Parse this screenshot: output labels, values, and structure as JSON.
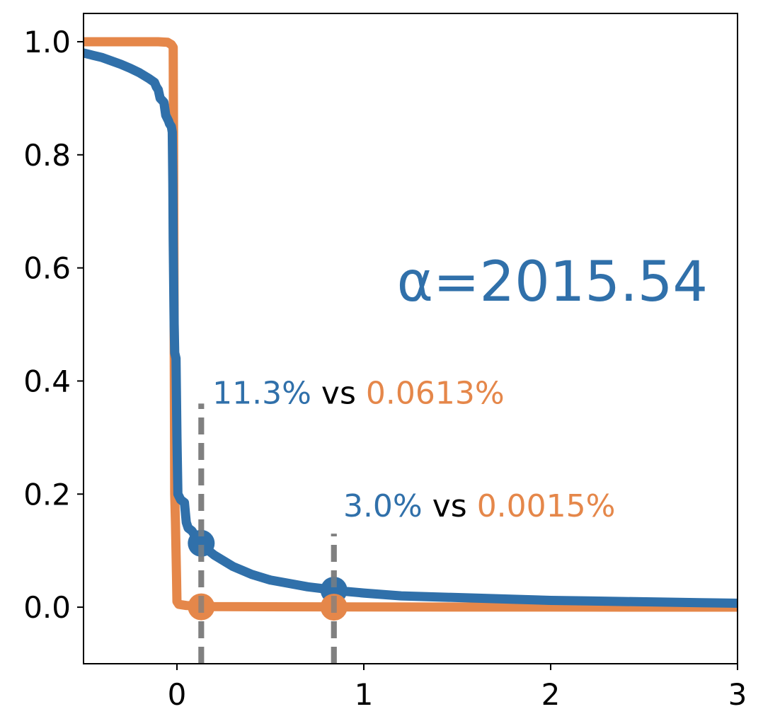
{
  "colors": {
    "blue": "#3070aa",
    "orange": "#e5874a",
    "vline": "#808080",
    "text": "#000000"
  },
  "chart_data": {
    "type": "line",
    "xlim": [
      -0.5,
      3.0
    ],
    "ylim": [
      -0.1,
      1.05
    ],
    "x_ticks": [
      0,
      1,
      2,
      3
    ],
    "x_tick_labels": [
      "0",
      "1",
      "2",
      "3"
    ],
    "y_ticks": [
      0.0,
      0.2,
      0.4,
      0.6,
      0.8,
      1.0
    ],
    "y_tick_labels": [
      "0.0",
      "0.2",
      "0.4",
      "0.6",
      "0.8",
      "1.0"
    ],
    "grid": false,
    "series": [
      {
        "color": "#3070aa",
        "points": [
          [
            -0.5,
            0.98
          ],
          [
            -0.45,
            0.976
          ],
          [
            -0.4,
            0.972
          ],
          [
            -0.35,
            0.966
          ],
          [
            -0.3,
            0.96
          ],
          [
            -0.25,
            0.953
          ],
          [
            -0.2,
            0.945
          ],
          [
            -0.15,
            0.935
          ],
          [
            -0.12,
            0.928
          ],
          [
            -0.11,
            0.92
          ],
          [
            -0.1,
            0.915
          ],
          [
            -0.09,
            0.9
          ],
          [
            -0.07,
            0.893
          ],
          [
            -0.06,
            0.87
          ],
          [
            -0.045,
            0.86
          ],
          [
            -0.04,
            0.855
          ],
          [
            -0.03,
            0.85
          ],
          [
            -0.025,
            0.84
          ],
          [
            -0.022,
            0.75
          ],
          [
            -0.02,
            0.65
          ],
          [
            -0.015,
            0.5
          ],
          [
            -0.012,
            0.45
          ],
          [
            -0.005,
            0.44
          ],
          [
            0.0,
            0.3
          ],
          [
            0.005,
            0.2
          ],
          [
            0.02,
            0.19
          ],
          [
            0.04,
            0.185
          ],
          [
            0.05,
            0.15
          ],
          [
            0.06,
            0.14
          ],
          [
            0.08,
            0.135
          ],
          [
            0.1,
            0.125
          ],
          [
            0.12,
            0.115
          ],
          [
            0.15,
            0.105
          ],
          [
            0.2,
            0.092
          ],
          [
            0.25,
            0.082
          ],
          [
            0.3,
            0.072
          ],
          [
            0.35,
            0.065
          ],
          [
            0.4,
            0.058
          ],
          [
            0.5,
            0.048
          ],
          [
            0.6,
            0.042
          ],
          [
            0.7,
            0.036
          ],
          [
            0.8,
            0.032
          ],
          [
            0.9,
            0.028
          ],
          [
            1.0,
            0.025
          ],
          [
            1.2,
            0.02
          ],
          [
            1.4,
            0.018
          ],
          [
            1.6,
            0.016
          ],
          [
            1.8,
            0.014
          ],
          [
            2.0,
            0.012
          ],
          [
            2.2,
            0.011
          ],
          [
            2.4,
            0.01
          ],
          [
            2.6,
            0.009
          ],
          [
            2.8,
            0.008
          ],
          [
            3.0,
            0.007
          ]
        ]
      },
      {
        "color": "#e5874a",
        "points": [
          [
            -0.5,
            1.0
          ],
          [
            -0.1,
            1.0
          ],
          [
            -0.05,
            0.999
          ],
          [
            -0.03,
            0.995
          ],
          [
            -0.02,
            0.99
          ],
          [
            -0.015,
            0.5
          ],
          [
            -0.012,
            0.2
          ],
          [
            -0.008,
            0.15
          ],
          [
            -0.002,
            0.05
          ],
          [
            0.0,
            0.01
          ],
          [
            0.01,
            0.005
          ],
          [
            0.05,
            0.003
          ],
          [
            0.1,
            0.002
          ],
          [
            0.2,
            0.001
          ],
          [
            0.5,
            0.0007
          ],
          [
            1.0,
            0.0004
          ],
          [
            2.0,
            0.0002
          ],
          [
            3.0,
            0.0001
          ]
        ]
      }
    ],
    "markers": [
      {
        "x": 0.13,
        "y": 0.113,
        "color": "#3070aa"
      },
      {
        "x": 0.13,
        "y": 0.0006,
        "color": "#e5874a"
      },
      {
        "x": 0.84,
        "y": 0.03,
        "color": "#3070aa"
      },
      {
        "x": 0.84,
        "y": 2e-05,
        "color": "#e5874a"
      }
    ],
    "vlines": [
      {
        "x": 0.13,
        "y_from": -0.1,
        "y_to": 0.36
      },
      {
        "x": 0.84,
        "y_from": -0.1,
        "y_to": 0.13
      }
    ],
    "alpha_label": "α=2015.54",
    "annotations": [
      {
        "x": 0.19,
        "y": 0.36,
        "blue_text": "11.3%",
        "vs_text": " vs ",
        "orange_text": "0.0613%"
      },
      {
        "x": 0.89,
        "y": 0.16,
        "blue_text": "3.0%",
        "vs_text": " vs ",
        "orange_text": "0.0015%"
      }
    ]
  }
}
